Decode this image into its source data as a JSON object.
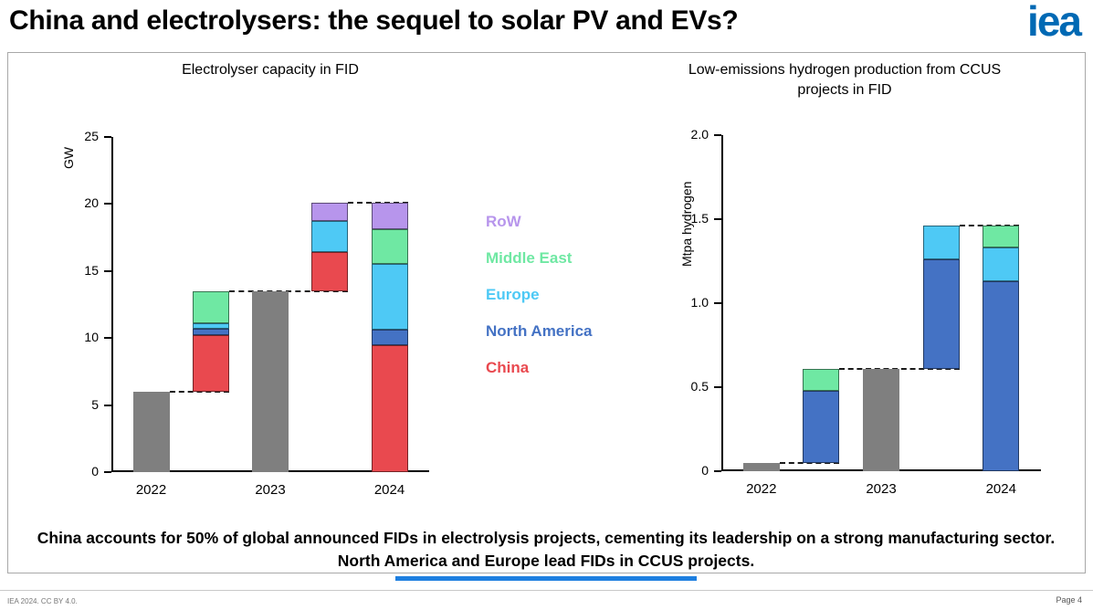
{
  "header": {
    "title": "China and electrolysers: the sequel to solar PV and EVs?",
    "logo_text": "iea",
    "logo_color": "#0069b4"
  },
  "series_colors": {
    "Total": "#7f7f7f",
    "China": "#e9494f",
    "North America": "#4472c4",
    "Europe": "#4ec9f5",
    "Middle East": "#6fe8a3",
    "RoW": "#b795ec"
  },
  "legend": {
    "items": [
      {
        "label": "RoW",
        "color": "#b795ec"
      },
      {
        "label": "Middle East",
        "color": "#6fe8a3"
      },
      {
        "label": "Europe",
        "color": "#4ec9f5"
      },
      {
        "label": "North America",
        "color": "#4472c4"
      },
      {
        "label": "China",
        "color": "#e9494f"
      }
    ]
  },
  "chart_data": [
    {
      "id": "electrolyser",
      "type": "bar",
      "subtype": "waterfall-stacked",
      "title": "Electrolyser capacity in FID",
      "ylabel": "GW",
      "ylim": [
        0,
        25
      ],
      "yticks": [
        0,
        5,
        10,
        15,
        20,
        25
      ],
      "ytick_labels": [
        "0",
        "5",
        "10",
        "15",
        "20",
        "25"
      ],
      "categories": [
        "2022",
        "2023",
        "2024"
      ],
      "x_labels": [
        {
          "slot": 0,
          "label": "2022"
        },
        {
          "slot": 2,
          "label": "2023"
        },
        {
          "slot": 4,
          "label": "2024"
        }
      ],
      "bars": [
        {
          "slot": 0,
          "base": 0,
          "segments": [
            {
              "series": "Total",
              "value": 6.0
            }
          ]
        },
        {
          "slot": 1,
          "base": 6.0,
          "segments": [
            {
              "series": "China",
              "value": 4.2
            },
            {
              "series": "North America",
              "value": 0.5
            },
            {
              "series": "Europe",
              "value": 0.4
            },
            {
              "series": "Middle East",
              "value": 2.4
            }
          ]
        },
        {
          "slot": 2,
          "base": 0,
          "segments": [
            {
              "series": "Total",
              "value": 13.5
            }
          ]
        },
        {
          "slot": 3,
          "base": 13.5,
          "segments": [
            {
              "series": "China",
              "value": 2.9
            },
            {
              "series": "Europe",
              "value": 2.3
            },
            {
              "series": "RoW",
              "value": 1.4
            }
          ]
        },
        {
          "slot": 4,
          "base": 0,
          "segments": [
            {
              "series": "China",
              "value": 9.5
            },
            {
              "series": "North America",
              "value": 1.1
            },
            {
              "series": "Europe",
              "value": 4.9
            },
            {
              "series": "Middle East",
              "value": 2.6
            },
            {
              "series": "RoW",
              "value": 2.0
            }
          ]
        }
      ],
      "connectors": [
        {
          "level": 6.0,
          "from": 0,
          "to": 1
        },
        {
          "level": 13.5,
          "from": 1,
          "to": 3
        },
        {
          "level": 20.1,
          "from": 3,
          "to": 4
        }
      ]
    },
    {
      "id": "ccus-hydrogen",
      "type": "bar",
      "subtype": "waterfall-stacked",
      "title": "Low-emissions hydrogen production from CCUS projects in FID",
      "ylabel": "Mtpa hydrogen",
      "ylim": [
        0,
        2.0
      ],
      "yticks": [
        0,
        0.5,
        1.0,
        1.5,
        2.0
      ],
      "ytick_labels": [
        "0",
        "0.5",
        "1.0",
        "1.5",
        "2.0"
      ],
      "categories": [
        "2022",
        "2023",
        "2024"
      ],
      "x_labels": [
        {
          "slot": 0,
          "label": "2022"
        },
        {
          "slot": 2,
          "label": "2023"
        },
        {
          "slot": 4,
          "label": "2024"
        }
      ],
      "bars": [
        {
          "slot": 0,
          "base": 0,
          "segments": [
            {
              "series": "Total",
              "value": 0.05
            }
          ]
        },
        {
          "slot": 1,
          "base": 0.05,
          "segments": [
            {
              "series": "North America",
              "value": 0.43
            },
            {
              "series": "Middle East",
              "value": 0.13
            }
          ]
        },
        {
          "slot": 2,
          "base": 0,
          "segments": [
            {
              "series": "Total",
              "value": 0.61
            }
          ]
        },
        {
          "slot": 3,
          "base": 0.61,
          "segments": [
            {
              "series": "North America",
              "value": 0.65
            },
            {
              "series": "Europe",
              "value": 0.2
            }
          ]
        },
        {
          "slot": 4,
          "base": 0,
          "segments": [
            {
              "series": "North America",
              "value": 1.13
            },
            {
              "series": "Europe",
              "value": 0.2
            },
            {
              "series": "Middle East",
              "value": 0.13
            }
          ]
        }
      ],
      "connectors": [
        {
          "level": 0.05,
          "from": 0,
          "to": 1
        },
        {
          "level": 0.61,
          "from": 1,
          "to": 3
        },
        {
          "level": 1.46,
          "from": 3,
          "to": 4
        }
      ]
    }
  ],
  "statement": {
    "text": "China accounts for 50% of global announced FIDs in electrolysis projects, cementing its leadership on a strong manufacturing sector. North America and Europe lead FIDs in CCUS projects."
  },
  "divider_color": "#1e7fe0",
  "footer": {
    "left": "IEA 2024. CC BY 4.0.",
    "right": "Page 4"
  }
}
